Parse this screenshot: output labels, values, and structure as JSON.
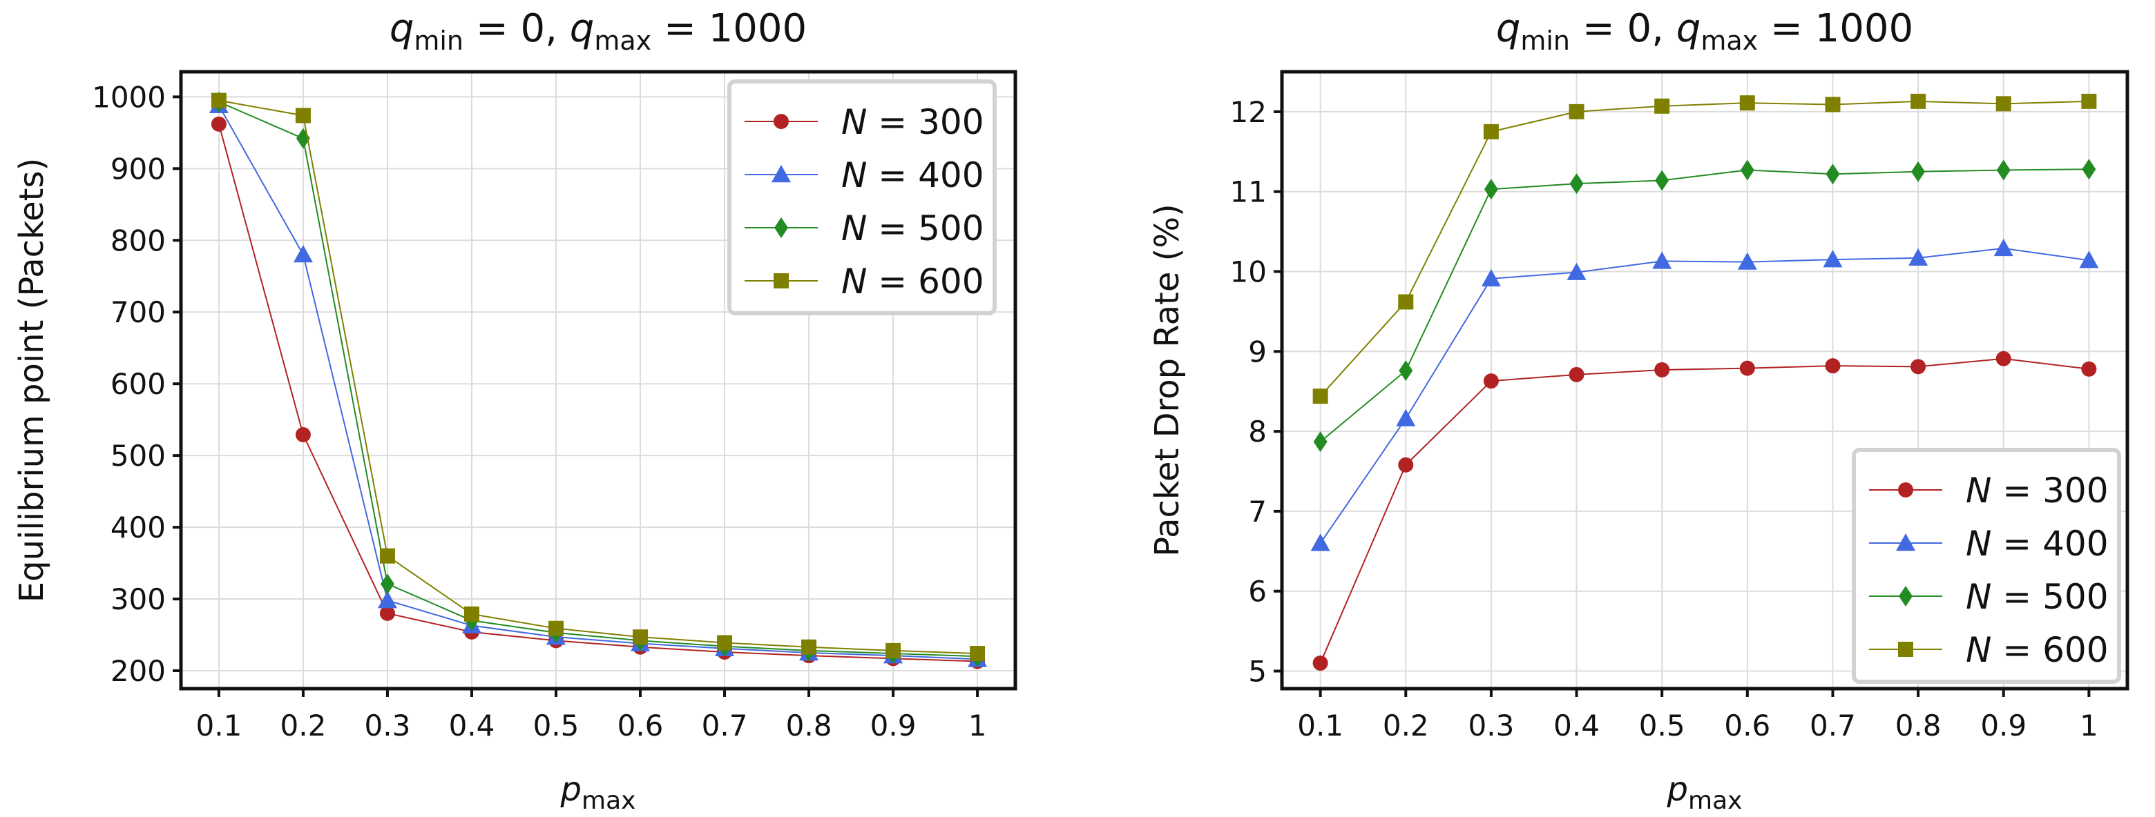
{
  "chart_data": [
    {
      "type": "line",
      "title": {
        "q": "q",
        "min_sub": "min",
        "mid": " = 0,    ",
        "max_sub": "max",
        "tail": " = 1000"
      },
      "xlabel": {
        "base": "p",
        "sub": "max"
      },
      "ylabel": "Equilibrium point (Packets)",
      "x": [
        0.1,
        0.2,
        0.3,
        0.4,
        0.5,
        0.6,
        0.7,
        0.8,
        0.9,
        1.0
      ],
      "x_tick_labels": [
        "0.1",
        "0.2",
        "0.3",
        "0.4",
        "0.5",
        "0.6",
        "0.7",
        "0.8",
        "0.9",
        "1"
      ],
      "y_ticks": [
        200,
        300,
        400,
        500,
        600,
        700,
        800,
        900,
        1000
      ],
      "y_tick_labels": [
        "200",
        "300",
        "400",
        "500",
        "600",
        "700",
        "800",
        "900",
        "1000"
      ],
      "xlim": [
        0.055,
        1.045
      ],
      "ylim": [
        175,
        1035
      ],
      "grid": true,
      "legend_position": "top-right",
      "series": [
        {
          "name": "N = 300",
          "legend": {
            "n": "N",
            "eq": " = 300"
          },
          "color": "#b22222",
          "marker": "circle",
          "values": [
            962,
            529,
            280,
            254,
            242,
            233,
            226,
            221,
            217,
            213
          ]
        },
        {
          "name": "N = 400",
          "legend": {
            "n": "N",
            "eq": " = 400"
          },
          "color": "#4169e1",
          "marker": "triangle",
          "values": [
            988,
            780,
            298,
            263,
            247,
            238,
            231,
            225,
            221,
            216
          ]
        },
        {
          "name": "N = 500",
          "legend": {
            "n": "N",
            "eq": " = 500"
          },
          "color": "#228b22",
          "marker": "diamond",
          "values": [
            993,
            942,
            321,
            270,
            253,
            242,
            234,
            228,
            224,
            220
          ]
        },
        {
          "name": "N = 600",
          "legend": {
            "n": "N",
            "eq": " = 600"
          },
          "color": "#808000",
          "marker": "square",
          "values": [
            995,
            974,
            360,
            279,
            259,
            247,
            239,
            233,
            228,
            224
          ]
        }
      ]
    },
    {
      "type": "line",
      "title": {
        "q": "q",
        "min_sub": "min",
        "mid": " = 0,    ",
        "max_sub": "max",
        "tail": " = 1000"
      },
      "xlabel": {
        "base": "p",
        "sub": "max"
      },
      "ylabel": "Packet Drop Rate (%)",
      "x": [
        0.1,
        0.2,
        0.3,
        0.4,
        0.5,
        0.6,
        0.7,
        0.8,
        0.9,
        1.0
      ],
      "x_tick_labels": [
        "0.1",
        "0.2",
        "0.3",
        "0.4",
        "0.5",
        "0.6",
        "0.7",
        "0.8",
        "0.9",
        "1"
      ],
      "y_ticks": [
        5,
        6,
        7,
        8,
        9,
        10,
        11,
        12
      ],
      "y_tick_labels": [
        "5",
        "6",
        "7",
        "8",
        "9",
        "10",
        "11",
        "12"
      ],
      "xlim": [
        0.055,
        1.045
      ],
      "ylim": [
        4.78,
        12.5
      ],
      "grid": true,
      "legend_position": "bottom-right",
      "series": [
        {
          "name": "N = 300",
          "legend": {
            "n": "N",
            "eq": " = 300"
          },
          "color": "#b22222",
          "marker": "circle",
          "values": [
            5.1,
            7.58,
            8.63,
            8.71,
            8.77,
            8.79,
            8.82,
            8.81,
            8.91,
            8.78
          ]
        },
        {
          "name": "N = 400",
          "legend": {
            "n": "N",
            "eq": " = 400"
          },
          "color": "#4169e1",
          "marker": "triangle",
          "values": [
            6.6,
            8.16,
            9.91,
            9.99,
            10.13,
            10.12,
            10.15,
            10.17,
            10.29,
            10.14
          ]
        },
        {
          "name": "N = 500",
          "legend": {
            "n": "N",
            "eq": " = 500"
          },
          "color": "#228b22",
          "marker": "diamond",
          "values": [
            7.87,
            8.76,
            11.03,
            11.1,
            11.14,
            11.27,
            11.22,
            11.25,
            11.27,
            11.28
          ]
        },
        {
          "name": "N = 600",
          "legend": {
            "n": "N",
            "eq": " = 600"
          },
          "color": "#808000",
          "marker": "square",
          "values": [
            8.44,
            9.62,
            11.75,
            12.0,
            12.07,
            12.11,
            12.09,
            12.13,
            12.1,
            12.13
          ]
        }
      ]
    }
  ]
}
